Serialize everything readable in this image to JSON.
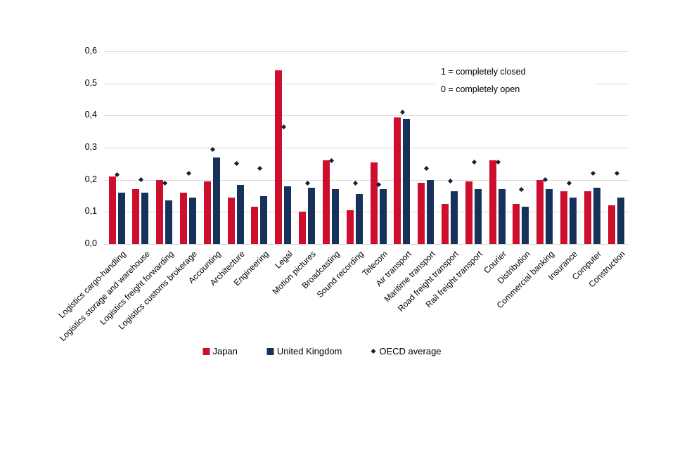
{
  "chart_data": {
    "type": "bar",
    "title": "",
    "xlabel": "",
    "ylabel": "",
    "categories": [
      "Logistics cargo-handling",
      "Logistics storage and warehouse",
      "Logistics freight forwarding",
      "Logistics customs brokerage",
      "Accounting",
      "Architecture",
      "Engineering",
      "Legal",
      "Motion pictures",
      "Broadcasting",
      "Sound recording",
      "Telecom",
      "Air transport",
      "Maritime transport",
      "Road freight transport",
      "Rail freight transport",
      "Courier",
      "Distribution",
      "Commercial banking",
      "Insurance",
      "Computer",
      "Construction"
    ],
    "series": [
      {
        "name": "Japan",
        "color": "#ce0e2d",
        "values": [
          0.21,
          0.17,
          0.2,
          0.16,
          0.195,
          0.145,
          0.115,
          0.54,
          0.1,
          0.26,
          0.105,
          0.255,
          0.395,
          0.19,
          0.125,
          0.195,
          0.26,
          0.125,
          0.2,
          0.165,
          0.165,
          0.12
        ]
      },
      {
        "name": "United Kingdom",
        "color": "#16325a",
        "values": [
          0.16,
          0.16,
          0.135,
          0.145,
          0.27,
          0.185,
          0.15,
          0.18,
          0.175,
          0.17,
          0.155,
          0.17,
          0.39,
          0.2,
          0.165,
          0.17,
          0.17,
          0.115,
          0.17,
          0.145,
          0.175,
          0.145
        ]
      }
    ],
    "markers": {
      "name": "OECD average",
      "color": "#122138",
      "values": [
        0.215,
        0.2,
        0.19,
        0.22,
        0.295,
        0.25,
        0.235,
        0.365,
        0.19,
        0.26,
        0.19,
        0.185,
        0.41,
        0.235,
        0.195,
        0.255,
        0.255,
        0.17,
        0.2,
        0.19,
        0.22,
        0.22
      ]
    },
    "ylim": [
      0,
      0.6
    ],
    "yticks": [
      {
        "value": 0.0,
        "label": "0,0"
      },
      {
        "value": 0.1,
        "label": "0,1"
      },
      {
        "value": 0.2,
        "label": "0,2"
      },
      {
        "value": 0.3,
        "label": "0,3"
      },
      {
        "value": 0.4,
        "label": "0,4"
      },
      {
        "value": 0.5,
        "label": "0,5"
      },
      {
        "value": 0.6,
        "label": "0,6"
      }
    ],
    "grid": true,
    "gridline_color": "#d9d9d9",
    "legend_position": "bottom",
    "annotations": [
      "1 = completely closed",
      "0 = completely open"
    ]
  }
}
